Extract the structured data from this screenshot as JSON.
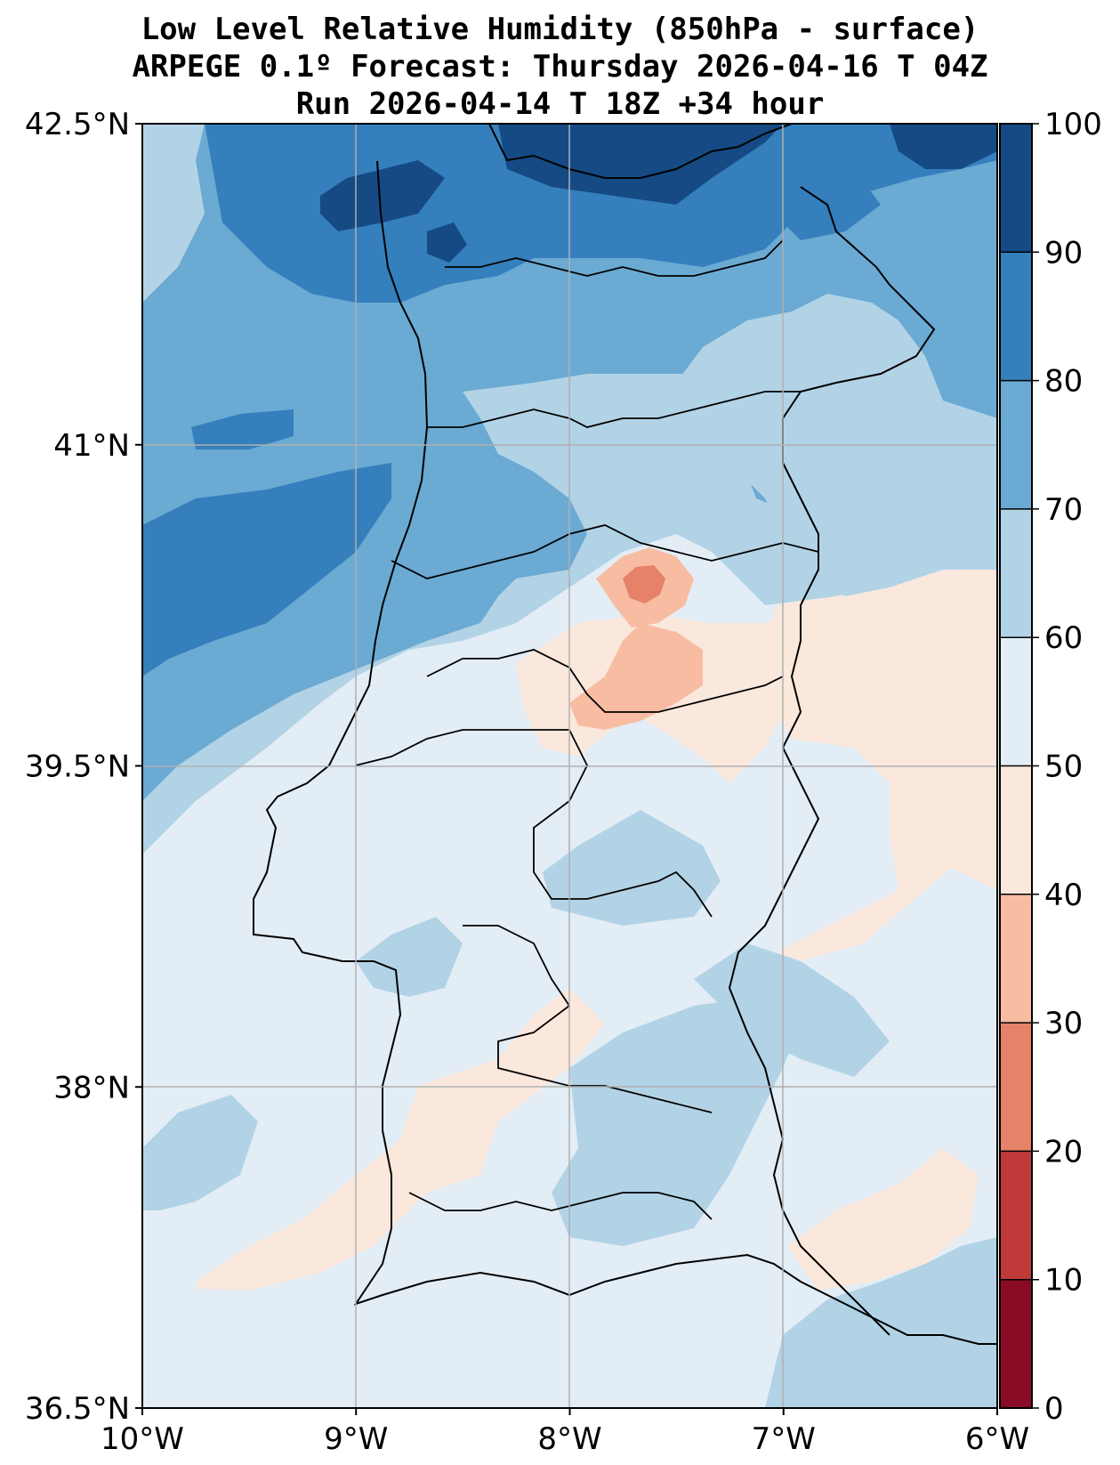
{
  "title": {
    "line1": "Low Level Relative Humidity (850hPa - surface)",
    "line2": "ARPEGE 0.1º Forecast: Thursday 2026-04-16 T 04Z",
    "line3": "Run 2026-04-14 T 18Z +34 hour"
  },
  "map": {
    "lat_range": [
      36.5,
      42.5
    ],
    "lon_range": [
      -10,
      -6
    ],
    "lat_ticks": [
      {
        "value": 42.5,
        "label": "42.5°N"
      },
      {
        "value": 41.0,
        "label": "41°N"
      },
      {
        "value": 39.5,
        "label": "39.5°N"
      },
      {
        "value": 38.0,
        "label": "38°N"
      },
      {
        "value": 36.5,
        "label": "36.5°N"
      }
    ],
    "lon_ticks": [
      {
        "value": -10,
        "label": "10°W"
      },
      {
        "value": -9,
        "label": "9°W"
      },
      {
        "value": -8,
        "label": "8°W"
      },
      {
        "value": -7,
        "label": "7°W"
      },
      {
        "value": -6,
        "label": "6°W"
      }
    ],
    "gridlines": true
  },
  "colorbar": {
    "levels": [
      0,
      10,
      20,
      30,
      40,
      50,
      60,
      70,
      80,
      90,
      100
    ],
    "labels": [
      "0",
      "10",
      "20",
      "30",
      "40",
      "50",
      "60",
      "70",
      "80",
      "90",
      "100"
    ],
    "colors": [
      "#8a0b25",
      "#c03a3a",
      "#e58268",
      "#f8bca2",
      "#fae8dd",
      "#e3edf5",
      "#b2d3e6",
      "#6aaad3",
      "#347fbc",
      "#154a84"
    ]
  }
}
